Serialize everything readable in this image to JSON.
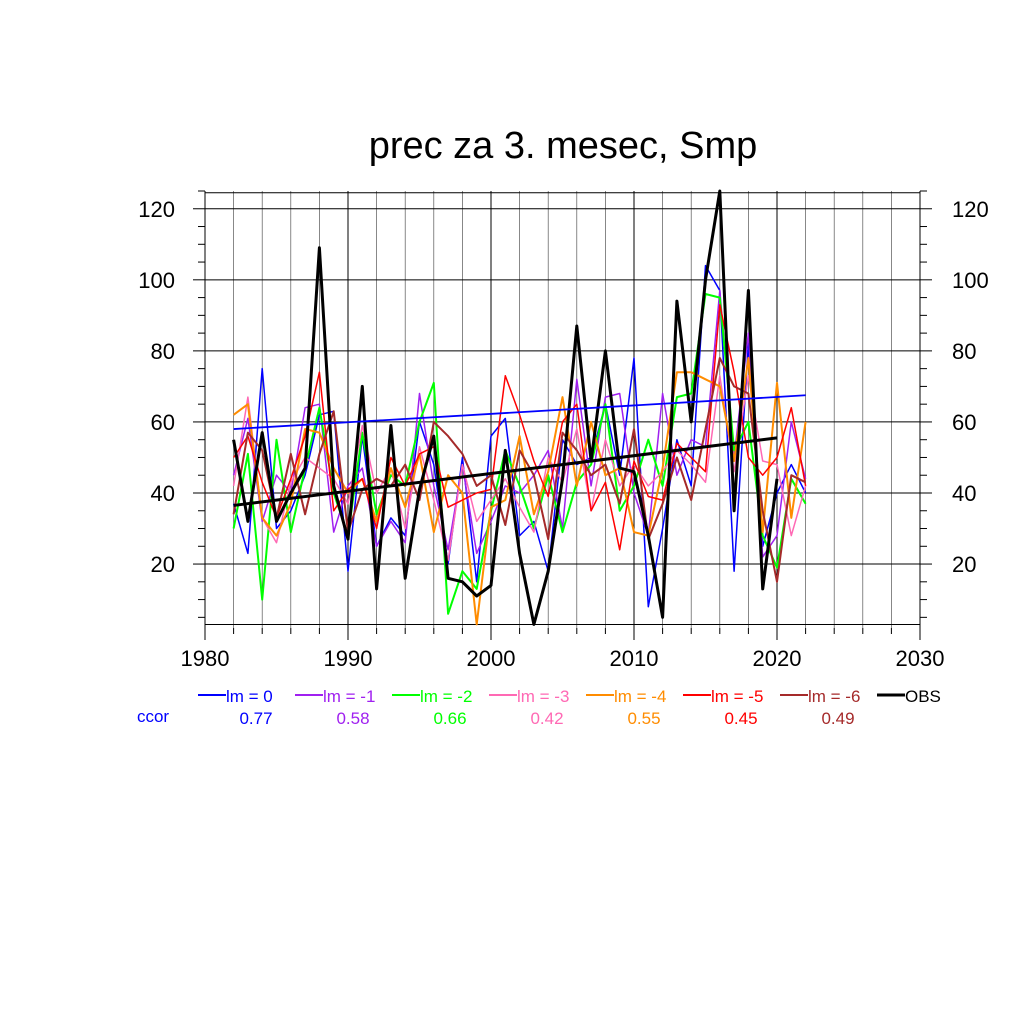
{
  "chart_data": {
    "type": "line",
    "title": "prec za 3. mesec, Smp",
    "xlabel": "",
    "ylabel": "",
    "xlim": [
      1980,
      2030
    ],
    "ylim": [
      2,
      125
    ],
    "xticks": [
      1980,
      1990,
      2000,
      2010,
      2020,
      2030
    ],
    "yticks": [
      20,
      40,
      60,
      80,
      100,
      120
    ],
    "grid": true,
    "legend_placement": "bottom",
    "ccor_label": "ccor",
    "x": [
      1982,
      1983,
      1984,
      1985,
      1986,
      1987,
      1988,
      1989,
      1990,
      1991,
      1992,
      1993,
      1994,
      1995,
      1996,
      1997,
      1998,
      1999,
      2000,
      2001,
      2002,
      2003,
      2004,
      2005,
      2006,
      2007,
      2008,
      2009,
      2010,
      2011,
      2012,
      2013,
      2014,
      2015,
      2016,
      2017,
      2018,
      2019,
      2020,
      2021,
      2022
    ],
    "series": [
      {
        "name": "lm = 0",
        "ccor": "0.77",
        "color": "#0000ff",
        "width": 1.5,
        "values": [
          37,
          23,
          75,
          30,
          35,
          45,
          62,
          63,
          18,
          56,
          25,
          33,
          28,
          60,
          48,
          20,
          50,
          15,
          56,
          61,
          28,
          32,
          18,
          55,
          48,
          50,
          65,
          45,
          78,
          8,
          30,
          55,
          42,
          104,
          97,
          18,
          82,
          25,
          40,
          48,
          40
        ],
        "trend": {
          "x": [
            1982,
            2022
          ],
          "y": [
            58,
            67.5
          ]
        }
      },
      {
        "name": "lm = -1",
        "ccor": "0.58",
        "color": "#a020f0",
        "width": 1.5,
        "values": [
          45,
          61,
          32,
          45,
          40,
          64,
          65,
          29,
          42,
          47,
          25,
          32,
          26,
          68,
          42,
          24,
          48,
          23,
          32,
          42,
          40,
          45,
          52,
          30,
          72,
          42,
          67,
          68,
          40,
          28,
          68,
          45,
          55,
          53,
          97,
          50,
          85,
          22,
          28,
          60,
          44
        ]
      },
      {
        "name": "lm = -2",
        "ccor": "0.66",
        "color": "#00ff00",
        "width": 2,
        "values": [
          30,
          51,
          10,
          55,
          29,
          47,
          64,
          40,
          28,
          57,
          34,
          45,
          42,
          60,
          71,
          6,
          18,
          13,
          35,
          52,
          42,
          30,
          45,
          29,
          43,
          48,
          65,
          35,
          42,
          55,
          42,
          67,
          68,
          96,
          95,
          52,
          60,
          28,
          19,
          44,
          37
        ]
      },
      {
        "name": "lm = -3",
        "ccor": "0.42",
        "color": "#ff69b4",
        "width": 1.5,
        "values": [
          42,
          67,
          33,
          26,
          43,
          50,
          47,
          44,
          37,
          59,
          40,
          47,
          30,
          53,
          38,
          21,
          48,
          32,
          38,
          44,
          36,
          29,
          50,
          43,
          58,
          35,
          55,
          42,
          48,
          42,
          46,
          52,
          48,
          43,
          73,
          46,
          73,
          49,
          48,
          28,
          42
        ]
      },
      {
        "name": "lm = -4",
        "ccor": "0.55",
        "color": "#ff8c00",
        "width": 2,
        "values": [
          62,
          65,
          33,
          28,
          37,
          58,
          57,
          47,
          40,
          44,
          32,
          47,
          36,
          51,
          29,
          45,
          40,
          3,
          36,
          38,
          56,
          34,
          46,
          67,
          42,
          60,
          45,
          47,
          29,
          28,
          47,
          74,
          74,
          72,
          70,
          49,
          78,
          29,
          71,
          33,
          60
        ]
      },
      {
        "name": "lm = -5",
        "ccor": "0.45",
        "color": "#ff0000",
        "width": 1.5,
        "values": [
          50,
          56,
          43,
          33,
          44,
          56,
          74,
          35,
          41,
          44,
          30,
          50,
          42,
          51,
          53,
          36,
          38,
          40,
          41,
          73,
          62,
          49,
          39,
          60,
          65,
          35,
          43,
          24,
          49,
          39,
          38,
          54,
          50,
          46,
          93,
          74,
          50,
          45,
          50,
          64,
          42
        ]
      },
      {
        "name": "lm = -6",
        "ccor": "0.49",
        "color": "#a52a2a",
        "width": 2,
        "values": [
          34,
          57,
          52,
          33,
          51,
          34,
          51,
          63,
          29,
          41,
          44,
          42,
          48,
          38,
          60,
          56,
          51,
          42,
          45,
          31,
          52,
          45,
          27,
          57,
          52,
          45,
          48,
          37,
          58,
          27,
          37,
          50,
          38,
          58,
          78,
          70,
          68,
          35,
          15,
          45,
          43
        ]
      },
      {
        "name": "OBS",
        "ccor": "",
        "color": "#000000",
        "width": 3,
        "values": [
          55,
          32,
          57,
          32,
          40,
          47,
          109,
          42,
          27,
          70,
          13,
          59,
          16,
          41,
          56,
          16,
          15,
          11,
          14,
          52,
          23,
          3,
          18,
          44,
          87,
          49,
          80,
          47,
          46,
          28,
          5,
          94,
          60,
          100,
          125,
          35,
          97,
          13,
          44,
          null,
          null
        ],
        "trend": {
          "x": [
            1982,
            2020
          ],
          "y": [
            36.5,
            55.5
          ]
        }
      }
    ]
  }
}
